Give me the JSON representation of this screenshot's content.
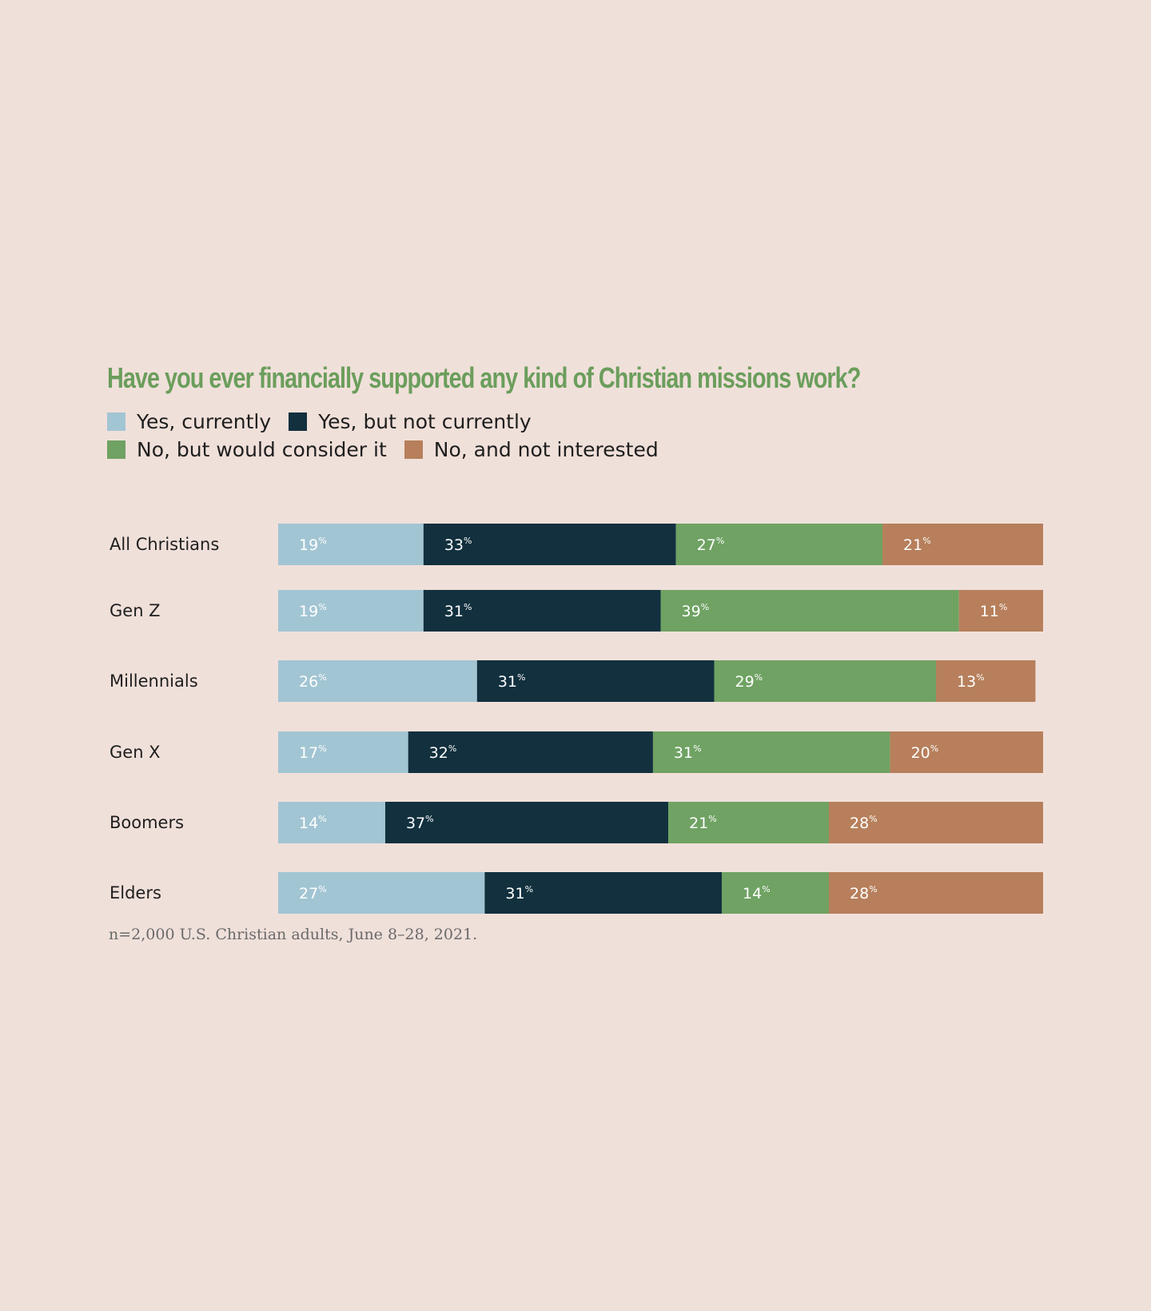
{
  "colors": {
    "background": "#f0e0da",
    "title": "#6b9e5c",
    "yes_currently": "#a2c5d3",
    "yes_not_currently": "#12303e",
    "no_would_consider": "#6fa263",
    "no_not_interested": "#b77f5b"
  },
  "chart_data": {
    "type": "bar",
    "orientation": "horizontal",
    "stacked": true,
    "title": "Have you ever financially supported any kind of Christian missions work?",
    "categories": [
      "All Christians",
      "Gen Z",
      "Millennials",
      "Gen X",
      "Boomers",
      "Elders"
    ],
    "series": [
      {
        "name": "Yes, currently",
        "color": "#a2c5d3",
        "values": [
          19,
          19,
          26,
          17,
          14,
          27
        ]
      },
      {
        "name": "Yes, but not currently",
        "color": "#12303e",
        "values": [
          33,
          31,
          31,
          32,
          37,
          31
        ]
      },
      {
        "name": "No, but would consider it",
        "color": "#6fa263",
        "values": [
          27,
          39,
          29,
          31,
          21,
          14
        ]
      },
      {
        "name": "No, and not interested",
        "color": "#b77f5b",
        "values": [
          21,
          11,
          13,
          20,
          28,
          28
        ]
      }
    ],
    "value_suffix": "%",
    "xlim": [
      0,
      100
    ],
    "legend": "top-left",
    "grid": false,
    "note": "n=2,000 U.S. Christian adults, June 8–28, 2021."
  }
}
